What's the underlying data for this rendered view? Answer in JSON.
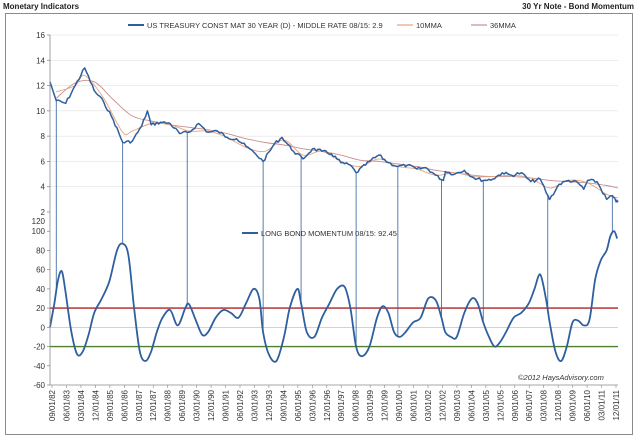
{
  "header": {
    "left_title": "Monetary Indicators",
    "right_title": "30 Yr Note - Bond Momentum"
  },
  "colors": {
    "primary_series": "#2e5f9e",
    "ma10": "#e8a47c",
    "ma36": "#c98f8f",
    "upper_threshold": "#b22222",
    "lower_threshold": "#4f7f2f",
    "connector": "#2e5f9e",
    "grid": "#d9d9d9"
  },
  "chart_data": [
    {
      "type": "line",
      "title": "",
      "legend": [
        "US TREASURY CONST MAT 30 YEAR (D) - MIDDLE RATE 08/15: 2.9",
        "10MMA",
        "36MMA"
      ],
      "legend_position": "top",
      "yticks": [
        2,
        4,
        6,
        8,
        10,
        12,
        14,
        16
      ],
      "ylim": [
        2,
        16
      ],
      "series": [
        {
          "name": "US TREASURY CONST MAT 30 YEAR (D) - MIDDLE RATE 08/15: 2.9",
          "x": [
            1982.67,
            1983.0,
            1983.5,
            1984.0,
            1984.5,
            1985.0,
            1985.5,
            1986.0,
            1986.5,
            1987.0,
            1987.5,
            1987.8,
            1988.0,
            1988.5,
            1989.0,
            1989.5,
            1990.0,
            1990.5,
            1991.0,
            1991.5,
            1992.0,
            1992.5,
            1993.0,
            1993.5,
            1993.9,
            1994.5,
            1994.9,
            1995.5,
            1996.0,
            1996.5,
            1997.0,
            1997.5,
            1998.0,
            1998.5,
            1998.8,
            1999.5,
            2000.0,
            2000.5,
            2001.0,
            2001.5,
            2002.0,
            2002.5,
            2003.0,
            2003.4,
            2003.5,
            2004.0,
            2004.5,
            2005.0,
            2005.5,
            2006.0,
            2006.5,
            2007.0,
            2007.5,
            2008.0,
            2008.5,
            2008.9,
            2009.0,
            2009.5,
            2010.0,
            2010.5,
            2010.8,
            2011.0,
            2011.5,
            2012.0,
            2012.3,
            2012.5,
            2012.6
          ],
          "values": [
            12.3,
            10.8,
            10.6,
            12.0,
            13.4,
            11.6,
            10.7,
            9.3,
            7.5,
            7.6,
            8.8,
            10.0,
            8.9,
            9.1,
            9.0,
            8.2,
            8.3,
            9.0,
            8.3,
            8.4,
            7.9,
            7.8,
            7.2,
            6.6,
            6.0,
            7.4,
            7.9,
            6.8,
            6.2,
            7.0,
            6.8,
            6.6,
            5.9,
            5.7,
            5.1,
            6.0,
            6.5,
            5.9,
            5.6,
            5.7,
            5.4,
            5.5,
            4.9,
            4.5,
            5.2,
            5.0,
            5.3,
            4.7,
            4.5,
            4.6,
            5.1,
            4.9,
            5.1,
            4.4,
            4.6,
            3.3,
            3.0,
            4.2,
            4.5,
            4.3,
            3.8,
            4.5,
            4.4,
            3.0,
            3.3,
            2.8,
            2.9
          ]
        },
        {
          "name": "10MMA",
          "x": [
            1983.0,
            1984.0,
            1984.5,
            1985.5,
            1986.5,
            1987.0,
            1988.0,
            1989.0,
            1990.0,
            1991.0,
            1992.0,
            1993.0,
            1994.0,
            1995.0,
            1996.0,
            1997.0,
            1998.0,
            1999.0,
            2000.0,
            2001.0,
            2002.0,
            2003.0,
            2004.0,
            2005.0,
            2006.0,
            2007.0,
            2008.0,
            2009.0,
            2010.0,
            2011.0,
            2012.0,
            2012.6
          ],
          "values": [
            11.5,
            12.0,
            12.8,
            11.0,
            8.3,
            8.4,
            9.0,
            8.9,
            8.4,
            8.4,
            7.9,
            7.1,
            6.8,
            7.7,
            6.5,
            6.8,
            6.0,
            5.6,
            6.2,
            5.6,
            5.4,
            4.9,
            5.1,
            4.8,
            4.8,
            4.9,
            4.7,
            3.9,
            4.5,
            4.3,
            3.4,
            3.1
          ]
        },
        {
          "name": "36MMA",
          "x": [
            1983.0,
            1984.0,
            1985.0,
            1986.0,
            1987.0,
            1988.0,
            1989.0,
            1990.0,
            1991.0,
            1992.0,
            1993.0,
            1994.0,
            1995.0,
            1996.0,
            1997.0,
            1998.0,
            1999.0,
            2000.0,
            2001.0,
            2002.0,
            2003.0,
            2004.0,
            2005.0,
            2006.0,
            2007.0,
            2008.0,
            2009.0,
            2010.0,
            2011.0,
            2012.0,
            2012.6
          ],
          "values": [
            11.0,
            12.2,
            12.3,
            10.9,
            9.6,
            9.2,
            8.9,
            8.7,
            8.5,
            8.2,
            7.8,
            7.5,
            7.3,
            7.0,
            6.8,
            6.5,
            6.1,
            6.0,
            5.8,
            5.6,
            5.3,
            5.1,
            4.9,
            4.8,
            4.8,
            4.7,
            4.5,
            4.4,
            4.3,
            4.1,
            3.9
          ]
        }
      ]
    },
    {
      "type": "line",
      "title": "",
      "legend": [
        "LONG BOND MOMENTUM 08/15: 92.45"
      ],
      "legend_position": "middle",
      "yticks": [
        -60,
        -40,
        -20,
        0,
        20,
        40,
        60,
        80,
        100,
        120
      ],
      "ylim": [
        -60,
        120
      ],
      "reference_lines": [
        {
          "name": "upper-threshold",
          "value": 20
        },
        {
          "name": "lower-threshold",
          "value": -20
        }
      ],
      "series": [
        {
          "name": "LONG BOND MOMENTUM 08/15: 92.45",
          "x": [
            1982.67,
            1982.9,
            1983.1,
            1983.3,
            1983.5,
            1983.8,
            1984.1,
            1984.4,
            1984.7,
            1985.0,
            1985.4,
            1985.8,
            1986.2,
            1986.5,
            1986.8,
            1987.1,
            1987.4,
            1987.7,
            1988.0,
            1988.3,
            1988.6,
            1989.0,
            1989.4,
            1989.8,
            1990.0,
            1990.4,
            1990.7,
            1991.0,
            1991.4,
            1991.8,
            1992.2,
            1992.6,
            1993.0,
            1993.4,
            1993.7,
            1993.9,
            1994.2,
            1994.6,
            1995.0,
            1995.3,
            1995.7,
            1995.9,
            1996.2,
            1996.6,
            1997.0,
            1997.4,
            1997.8,
            1998.2,
            1998.5,
            1998.8,
            1999.1,
            1999.5,
            1999.9,
            2000.2,
            2000.5,
            2000.8,
            2001.1,
            2001.4,
            2001.8,
            2002.2,
            2002.6,
            2003.0,
            2003.3,
            2003.5,
            2003.8,
            2004.1,
            2004.5,
            2004.9,
            2005.2,
            2005.5,
            2005.8,
            2006.1,
            2006.4,
            2006.7,
            2007.1,
            2007.5,
            2007.9,
            2008.2,
            2008.5,
            2008.8,
            2009.0,
            2009.3,
            2009.6,
            2009.9,
            2010.2,
            2010.5,
            2010.8,
            2011.1,
            2011.4,
            2011.7,
            2012.0,
            2012.2,
            2012.4,
            2012.55
          ],
          "values": [
            0,
            25,
            50,
            58,
            35,
            -5,
            -28,
            -25,
            -8,
            15,
            30,
            48,
            80,
            87,
            75,
            20,
            -25,
            -35,
            -25,
            -5,
            10,
            18,
            2,
            20,
            24,
            5,
            -8,
            -5,
            10,
            18,
            15,
            10,
            25,
            40,
            30,
            -5,
            -28,
            -35,
            -10,
            20,
            40,
            25,
            -5,
            -10,
            10,
            25,
            40,
            42,
            20,
            -20,
            -30,
            -20,
            10,
            22,
            15,
            -5,
            -10,
            -5,
            5,
            10,
            30,
            28,
            10,
            -5,
            -10,
            -10,
            15,
            30,
            25,
            5,
            -10,
            -20,
            -15,
            -5,
            10,
            15,
            25,
            40,
            55,
            30,
            5,
            -25,
            -35,
            -20,
            5,
            7,
            2,
            8,
            50,
            70,
            80,
            95,
            100,
            92.45
          ]
        }
      ]
    }
  ],
  "x_axis_labels": [
    "09/01/82",
    "06/01/83",
    "03/01/84",
    "12/01/84",
    "09/01/85",
    "06/01/86",
    "03/01/87",
    "12/01/87",
    "09/01/88",
    "06/01/89",
    "03/01/90",
    "12/01/90",
    "09/01/91",
    "06/01/92",
    "03/01/93",
    "12/01/93",
    "09/01/94",
    "06/01/95",
    "03/01/96",
    "12/01/96",
    "09/01/97",
    "06/01/98",
    "03/01/99",
    "12/01/99",
    "09/01/00",
    "06/01/01",
    "03/01/02",
    "12/01/02",
    "09/01/03",
    "06/01/04",
    "03/01/05",
    "12/01/05",
    "09/01/06",
    "06/01/07",
    "03/01/08",
    "12/01/08",
    "09/01/09",
    "06/01/10",
    "03/01/11",
    "12/01/11"
  ],
  "connector_years": [
    1983.0,
    1986.5,
    1989.9,
    1993.9,
    1995.9,
    1998.8,
    2001.0,
    2003.3,
    2005.5,
    2008.9,
    2012.3
  ],
  "copyright": "©2012 HaysAdvisory.com"
}
